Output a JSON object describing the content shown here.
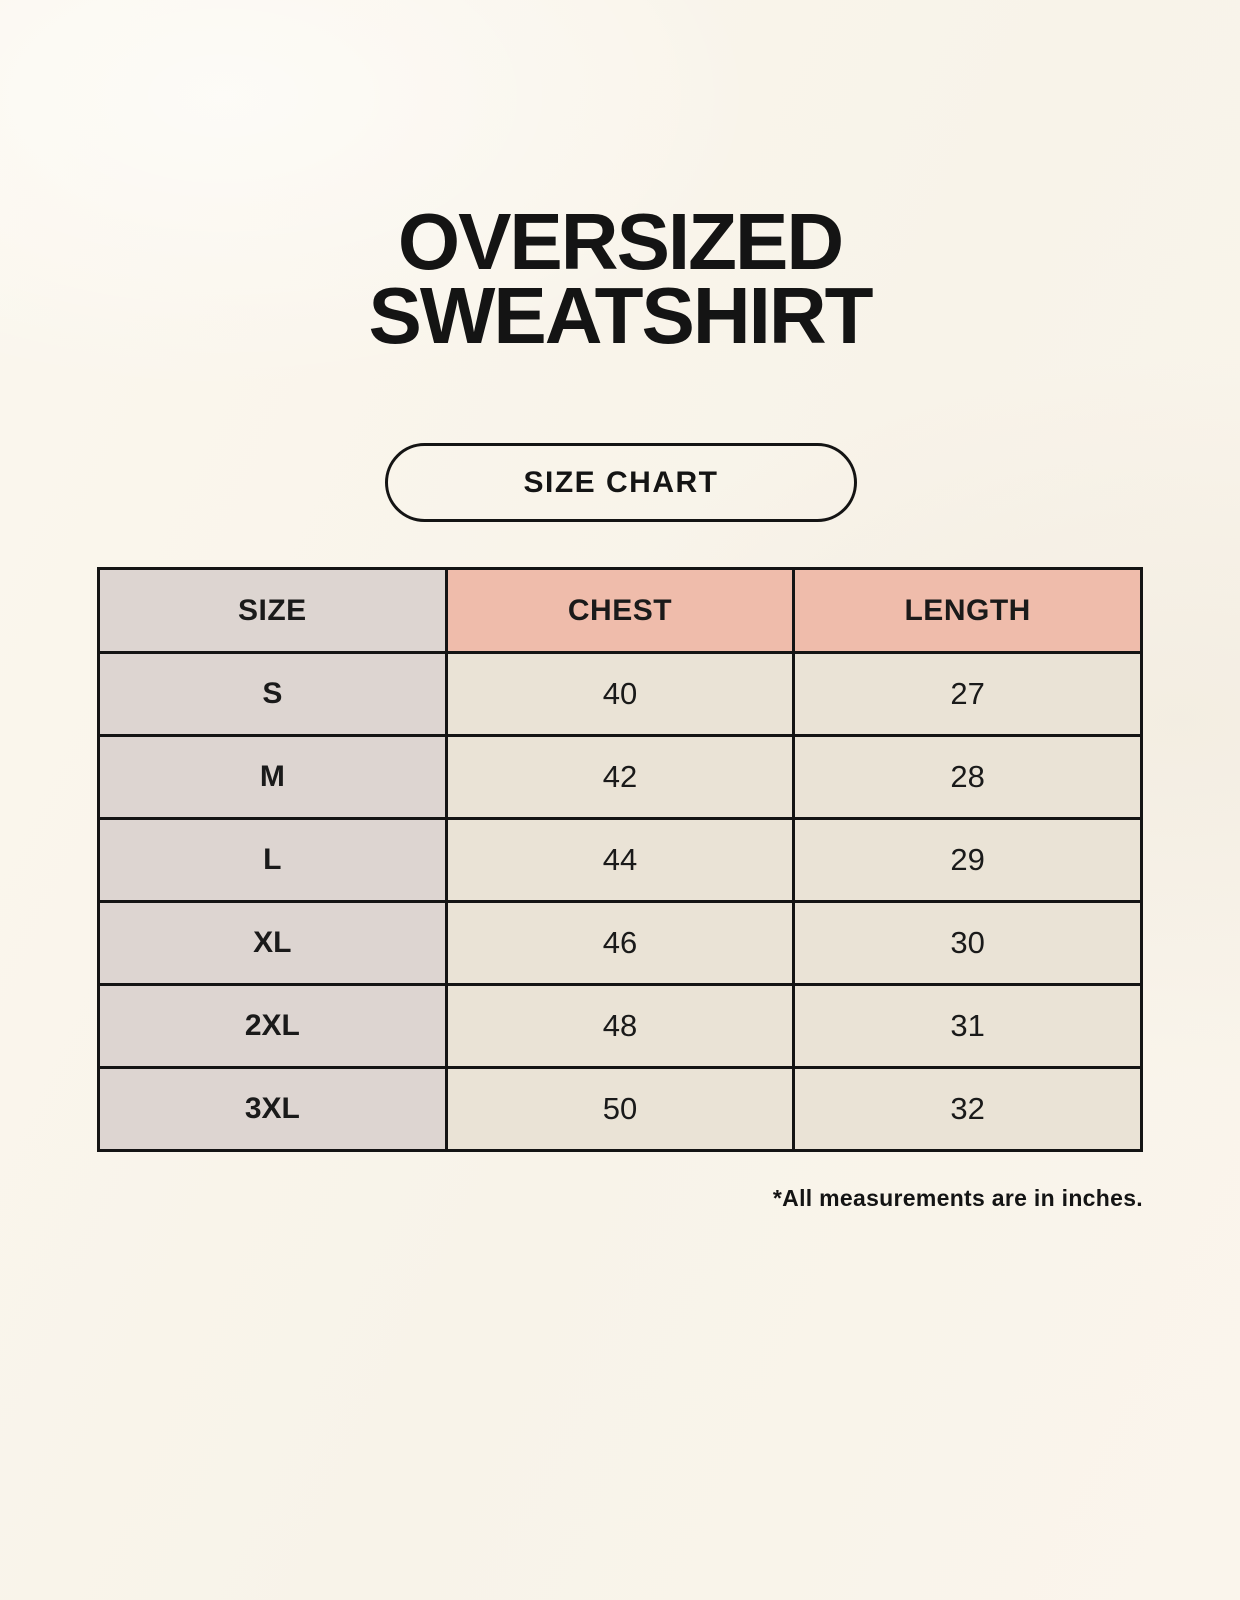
{
  "page": {
    "title_line1": "OVERSIZED",
    "title_line2": "SWEATSHIRT",
    "button_label": "SIZE CHART",
    "footnote": "*All measurements are in inches."
  },
  "colors": {
    "background": "#f9f4eb",
    "size_column_bg": "#ddd5d1",
    "measure_header_bg": "#efbcab",
    "value_cell_bg": "#eae3d6",
    "border": "#141414",
    "text": "#1a1a1a"
  },
  "chart_data": {
    "type": "table",
    "title": "OVERSIZED SWEATSHIRT",
    "columns": [
      "SIZE",
      "CHEST",
      "LENGTH"
    ],
    "rows": [
      {
        "size": "S",
        "chest": "40",
        "length": "27"
      },
      {
        "size": "M",
        "chest": "42",
        "length": "28"
      },
      {
        "size": "L",
        "chest": "44",
        "length": "29"
      },
      {
        "size": "XL",
        "chest": "46",
        "length": "30"
      },
      {
        "size": "2XL",
        "chest": "48",
        "length": "31"
      },
      {
        "size": "3XL",
        "chest": "50",
        "length": "32"
      }
    ],
    "note": "*All measurements are in inches.",
    "units": "inches"
  }
}
